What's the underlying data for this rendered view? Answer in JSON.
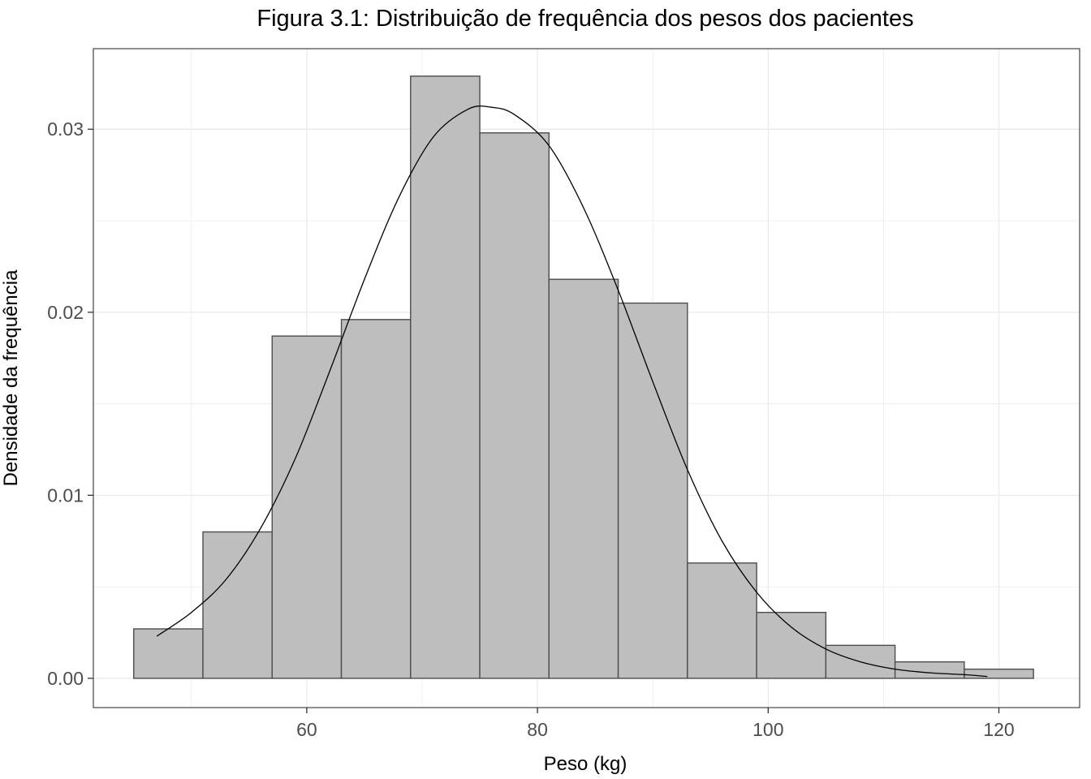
{
  "chart_data": {
    "type": "bar",
    "title": "Figura 3.1: Distribuição de frequência dos pesos dos pacientes",
    "xlabel": "Peso (kg)",
    "ylabel": "Densidade da frequência",
    "xlim": [
      41.5,
      127
    ],
    "ylim": [
      -0.0016,
      0.0344
    ],
    "x_ticks": [
      60,
      80,
      100,
      120
    ],
    "x_tick_labels": [
      "60",
      "80",
      "100",
      "120"
    ],
    "y_ticks": [
      0.0,
      0.01,
      0.02,
      0.03
    ],
    "y_tick_labels": [
      "0.00",
      "0.01",
      "0.02",
      "0.03"
    ],
    "grid": true,
    "legend": "none",
    "bin_width": 6,
    "bins": [
      {
        "x0": 45,
        "x1": 51,
        "density": 0.0027
      },
      {
        "x0": 51,
        "x1": 57,
        "density": 0.008
      },
      {
        "x0": 57,
        "x1": 63,
        "density": 0.0187
      },
      {
        "x0": 63,
        "x1": 69,
        "density": 0.0196
      },
      {
        "x0": 69,
        "x1": 75,
        "density": 0.0329
      },
      {
        "x0": 75,
        "x1": 81,
        "density": 0.0298
      },
      {
        "x0": 81,
        "x1": 87,
        "density": 0.0218
      },
      {
        "x0": 87,
        "x1": 93,
        "density": 0.0205
      },
      {
        "x0": 93,
        "x1": 99,
        "density": 0.0063
      },
      {
        "x0": 99,
        "x1": 105,
        "density": 0.0036
      },
      {
        "x0": 105,
        "x1": 111,
        "density": 0.0018
      },
      {
        "x0": 111,
        "x1": 117,
        "density": 0.0009
      },
      {
        "x0": 117,
        "x1": 123,
        "density": 0.0005
      }
    ],
    "density_curve": {
      "x": [
        47,
        50,
        53,
        56,
        59,
        62,
        65,
        68,
        71,
        74,
        76,
        78,
        81,
        84,
        87,
        90,
        93,
        96,
        99,
        102,
        105,
        108,
        111,
        114,
        117,
        119
      ],
      "y": [
        0.0023,
        0.0036,
        0.0054,
        0.0082,
        0.012,
        0.0168,
        0.0218,
        0.0263,
        0.0296,
        0.0311,
        0.0312,
        0.0308,
        0.0291,
        0.0257,
        0.0212,
        0.0162,
        0.0114,
        0.0075,
        0.0047,
        0.0028,
        0.0016,
        0.0009,
        0.0005,
        0.0003,
        0.0002,
        0.0001
      ]
    },
    "colors": {
      "bar_fill": "#bebebe",
      "bar_stroke": "#4d4d4d",
      "curve": "#000000",
      "grid": "#ebebeb",
      "panel_border": "#333333"
    }
  }
}
